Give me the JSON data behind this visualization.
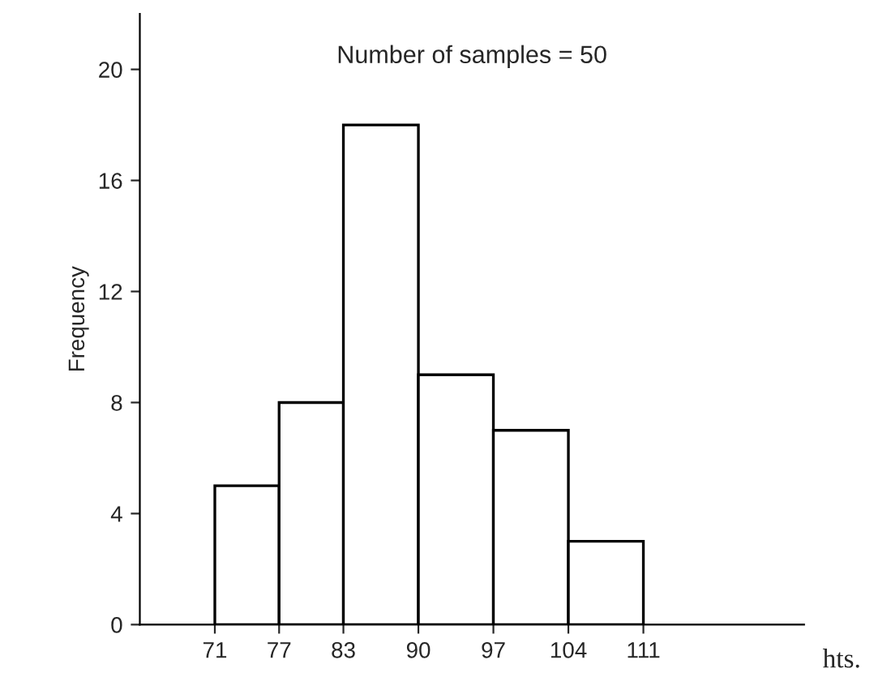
{
  "chart_data": {
    "type": "histogram",
    "title": "Number of samples = 50",
    "ylabel": "Frequency",
    "bins": [
      71,
      77,
      83,
      90,
      97,
      104,
      111
    ],
    "values": [
      5,
      8,
      18,
      9,
      7,
      3
    ],
    "color": "#ffffff",
    "xlim": [
      64,
      126
    ],
    "ylim": [
      0,
      22
    ],
    "xticks": [
      71,
      77,
      83,
      90,
      97,
      104,
      111
    ],
    "yticks": [
      0,
      4,
      8,
      12,
      16,
      20
    ],
    "grid": false,
    "annotations": [
      "hts."
    ]
  }
}
